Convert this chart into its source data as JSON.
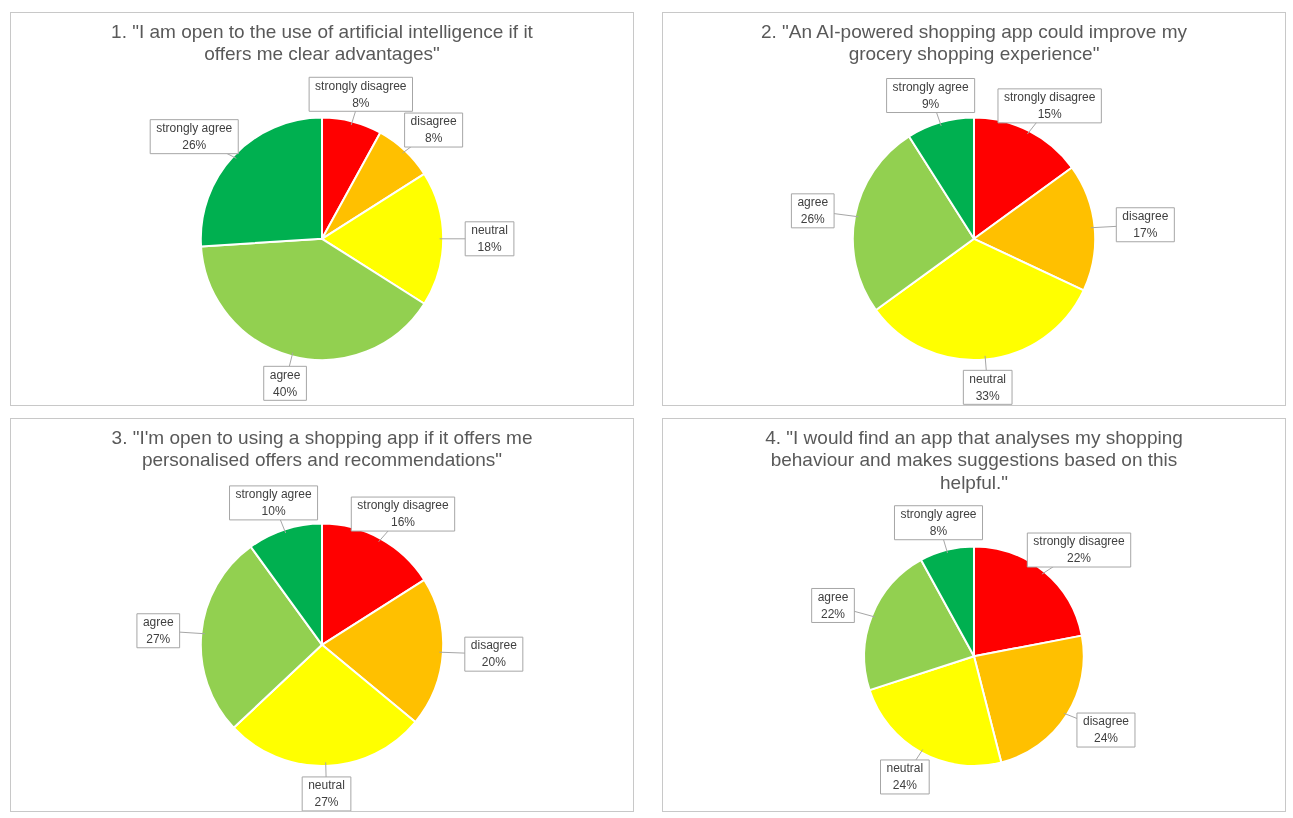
{
  "chart_data": [
    {
      "type": "pie",
      "title": "1. \"I am open to the use of artificial intelligence if it offers me clear advantages\"",
      "categories": [
        "strongly disagree",
        "disagree",
        "neutral",
        "agree",
        "strongly agree"
      ],
      "values": [
        8,
        8,
        18,
        40,
        26
      ],
      "value_labels": [
        "8%",
        "8%",
        "18%",
        "40%",
        "26%"
      ],
      "colors": [
        "#ff0000",
        "#ffc000",
        "#ffff00",
        "#92d050",
        "#00b050"
      ]
    },
    {
      "type": "pie",
      "title": "2. \"An AI-powered shopping app could improve my grocery shopping experience\"",
      "categories": [
        "strongly disagree",
        "disagree",
        "neutral",
        "agree",
        "strongly agree"
      ],
      "values": [
        15,
        17,
        33,
        26,
        9
      ],
      "value_labels": [
        "15%",
        "17%",
        "33%",
        "26%",
        "9%"
      ],
      "colors": [
        "#ff0000",
        "#ffc000",
        "#ffff00",
        "#92d050",
        "#00b050"
      ]
    },
    {
      "type": "pie",
      "title": "3. \"I'm open to using a shopping app if it offers me personalised offers and recommendations\"",
      "categories": [
        "strongly disagree",
        "disagree",
        "neutral",
        "agree",
        "strongly agree"
      ],
      "values": [
        16,
        20,
        27,
        27,
        10
      ],
      "value_labels": [
        "16%",
        "20%",
        "27%",
        "27%",
        "10%"
      ],
      "colors": [
        "#ff0000",
        "#ffc000",
        "#ffff00",
        "#92d050",
        "#00b050"
      ]
    },
    {
      "type": "pie",
      "title": "4. \"I would find an app that analyses my shopping behaviour and makes suggestions based on this helpful.\"",
      "categories": [
        "strongly disagree",
        "disagree",
        "neutral",
        "agree",
        "strongly agree"
      ],
      "values": [
        22,
        24,
        24,
        22,
        8
      ],
      "value_labels": [
        "22%",
        "24%",
        "24%",
        "22%",
        "8%"
      ],
      "colors": [
        "#ff0000",
        "#ffc000",
        "#ffff00",
        "#92d050",
        "#00b050"
      ]
    }
  ]
}
